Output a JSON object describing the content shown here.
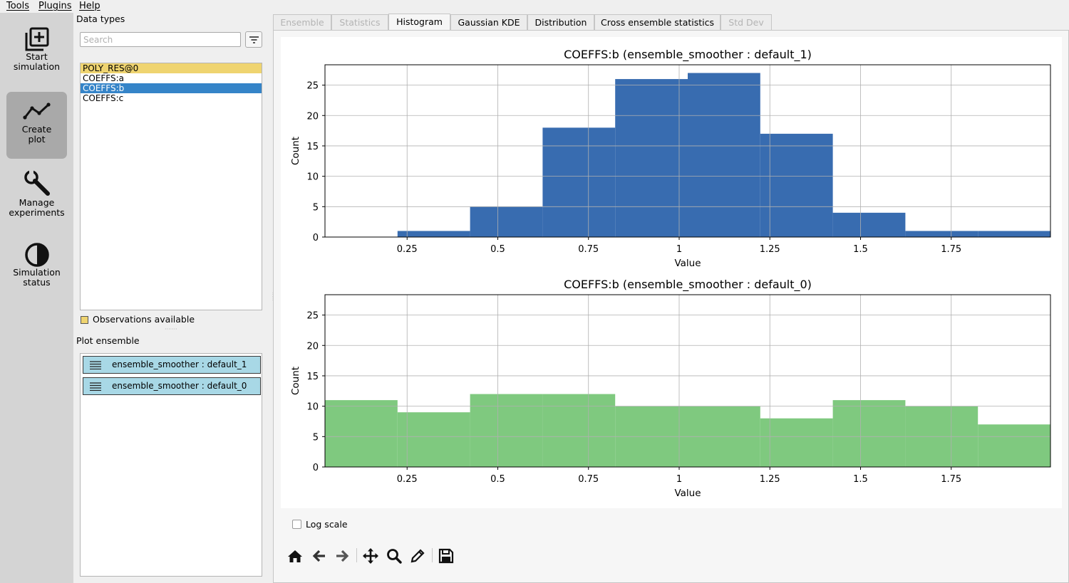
{
  "menu": {
    "items": [
      "Tools",
      "Plugins",
      "Help"
    ]
  },
  "sidebar": {
    "buttons": [
      {
        "line1": "Start",
        "line2": "simulation",
        "icon": "add-box-icon"
      },
      {
        "line1": "Create",
        "line2": "plot",
        "icon": "line-chart-icon"
      },
      {
        "line1": "Manage",
        "line2": "experiments",
        "icon": "wrench-icon"
      },
      {
        "line1": "Simulation",
        "line2": "status",
        "icon": "half-circle-icon"
      }
    ]
  },
  "data_types": {
    "title": "Data types",
    "search_placeholder": "Search",
    "items": [
      "POLY_RES@0",
      "COEFFS:a",
      "COEFFS:b",
      "COEFFS:c"
    ],
    "observations_label": "Observations available"
  },
  "plot_ensemble": {
    "title": "Plot ensemble",
    "items": [
      "ensemble_smoother : default_1",
      "ensemble_smoother : default_0"
    ]
  },
  "tabs": [
    "Ensemble",
    "Statistics",
    "Histogram",
    "Gaussian KDE",
    "Distribution",
    "Cross ensemble statistics",
    "Std Dev"
  ],
  "colors": {
    "hist1": "#386cb0",
    "hist2": "#7fc97f",
    "observation": "#efd470",
    "selected": "#3584c8"
  },
  "log_scale_label": "Log scale",
  "chart_data": [
    {
      "type": "bar",
      "title": "COEFFS:b (ensemble_smoother : default_1)",
      "xlabel": "Value",
      "ylabel": "Count",
      "bin_edges": [
        0.0236,
        0.2236,
        0.4236,
        0.6236,
        0.8236,
        1.0236,
        1.2236,
        1.4236,
        1.6236,
        1.8236,
        2.0236
      ],
      "values": [
        0,
        1,
        5,
        18,
        26,
        27,
        17,
        4,
        1,
        1
      ],
      "xlim": [
        0.0236,
        2.0236
      ],
      "ylim": [
        0,
        28.35
      ],
      "xticks": [
        0.25,
        0.5,
        0.75,
        1,
        1.25,
        1.5,
        1.75
      ],
      "xtick_labels": [
        "0.25",
        "0.5",
        "0.75",
        "1",
        "1.25",
        "1.5",
        "1.75"
      ],
      "yticks": [
        0,
        5,
        10,
        15,
        20,
        25
      ],
      "ytick_labels": [
        "0",
        "5",
        "10",
        "15",
        "20",
        "25"
      ],
      "color": "#386cb0",
      "grid": true
    },
    {
      "type": "bar",
      "title": "COEFFS:b (ensemble_smoother : default_0)",
      "xlabel": "Value",
      "ylabel": "Count",
      "bin_edges": [
        0.0236,
        0.2236,
        0.4236,
        0.6236,
        0.8236,
        1.0236,
        1.2236,
        1.4236,
        1.6236,
        1.8236,
        2.0236
      ],
      "values": [
        11,
        9,
        12,
        12,
        10,
        10,
        8,
        11,
        10,
        7
      ],
      "xlim": [
        0.0236,
        2.0236
      ],
      "ylim": [
        0,
        28.35
      ],
      "xticks": [
        0.25,
        0.5,
        0.75,
        1,
        1.25,
        1.5,
        1.75
      ],
      "xtick_labels": [
        "0.25",
        "0.5",
        "0.75",
        "1",
        "1.25",
        "1.5",
        "1.75"
      ],
      "yticks": [
        0,
        5,
        10,
        15,
        20,
        25
      ],
      "ytick_labels": [
        "0",
        "5",
        "10",
        "15",
        "20",
        "25"
      ],
      "color": "#7fc97f",
      "grid": true
    }
  ]
}
